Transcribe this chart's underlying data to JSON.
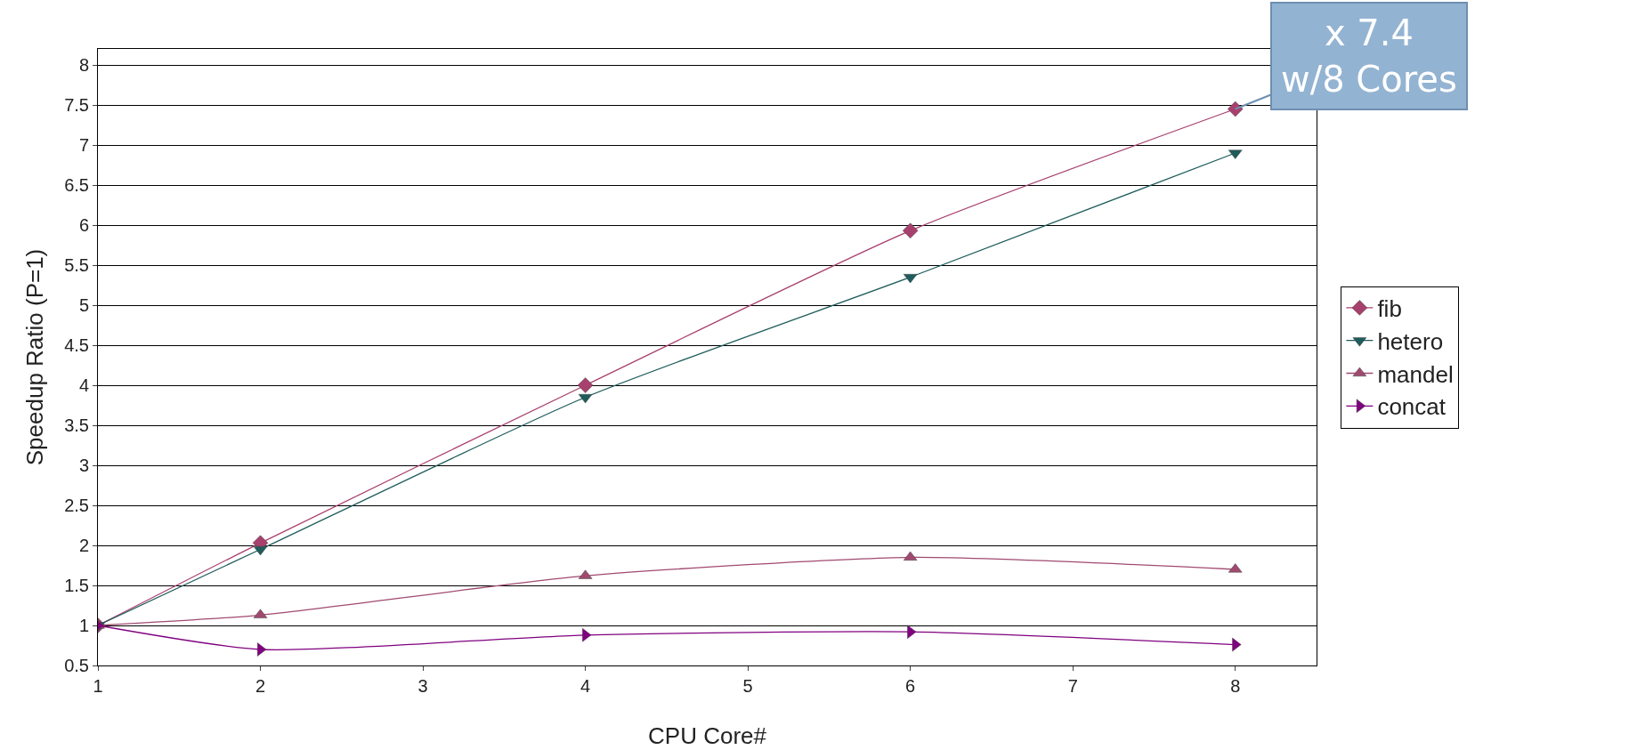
{
  "chart_data": {
    "type": "line",
    "xlabel": "CPU Core#",
    "ylabel": "Speedup Ratio (P=1)",
    "x": [
      1,
      2,
      4,
      6,
      8
    ],
    "series": [
      {
        "name": "fib",
        "color": "#a8406e",
        "marker": "diamond",
        "values": [
          1,
          2.03,
          4.0,
          5.93,
          7.45
        ]
      },
      {
        "name": "hetero",
        "color": "#1f5c5c",
        "marker": "triangle-down",
        "values": [
          1,
          1.95,
          3.85,
          5.35,
          6.9
        ]
      },
      {
        "name": "mandel",
        "color": "#a04a70",
        "marker": "triangle",
        "values": [
          1,
          1.13,
          1.62,
          1.85,
          1.7
        ]
      },
      {
        "name": "concat",
        "color": "#800080",
        "marker": "triangle-right",
        "values": [
          1,
          0.7,
          0.88,
          0.92,
          0.76
        ]
      }
    ],
    "xlim": [
      1,
      8.5
    ],
    "xticks": [
      1,
      2,
      3,
      4,
      5,
      6,
      7,
      8
    ],
    "ylim": [
      0.5,
      8.2
    ],
    "yticks": [
      0.5,
      1,
      1.5,
      2,
      2.5,
      3,
      3.5,
      4,
      4.5,
      5,
      5.5,
      6,
      6.5,
      7,
      7.5,
      8
    ],
    "grid": "y",
    "legend": "right",
    "annotations": [
      {
        "text": "x 7.4\nw/8 Cores",
        "x": 8,
        "y": 7.45
      }
    ]
  }
}
